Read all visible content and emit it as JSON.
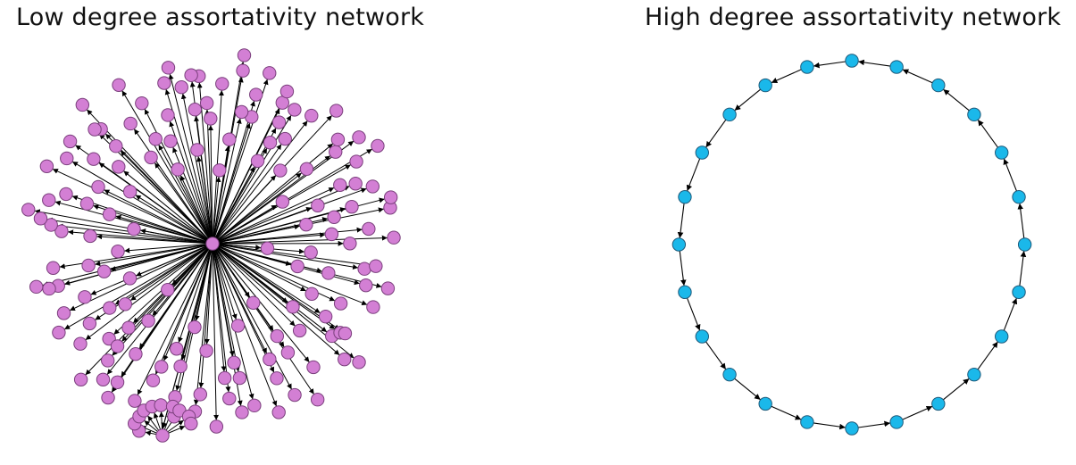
{
  "panels": [
    {
      "title": "Low degree assortativity network",
      "kind": "star",
      "leaf_count": 150,
      "node_color": "#d37fd4",
      "node_stroke": "#7a3f7c",
      "edge_color": "#000000"
    },
    {
      "title": "High degree assortativity network",
      "kind": "ring",
      "node_count": 24,
      "node_color": "#1ab8ea",
      "node_stroke": "#1f5a7a",
      "edge_color": "#000000"
    }
  ]
}
